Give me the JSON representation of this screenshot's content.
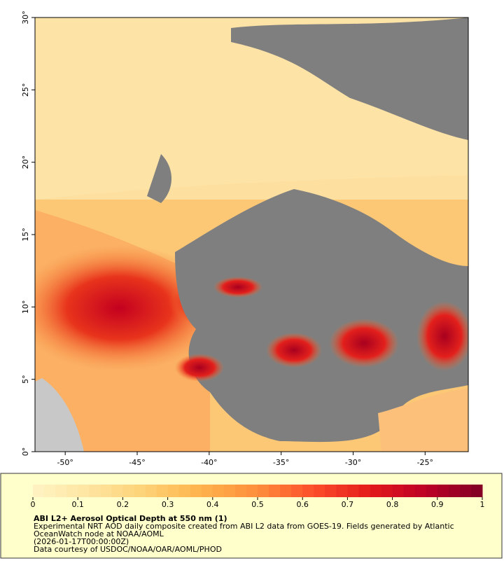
{
  "map": {
    "xlim": [
      -52.1,
      -22
    ],
    "ylim": [
      0,
      30
    ],
    "xticks": [
      {
        "value": -50,
        "label": "-50°"
      },
      {
        "value": -45,
        "label": "-45°"
      },
      {
        "value": -40,
        "label": "-40°"
      },
      {
        "value": -35,
        "label": "-35°"
      },
      {
        "value": -30,
        "label": "-30°"
      },
      {
        "value": -25,
        "label": "-25°"
      }
    ],
    "yticks": [
      {
        "value": 0,
        "label": "0°"
      },
      {
        "value": 5,
        "label": "5°"
      },
      {
        "value": 10,
        "label": "10°"
      },
      {
        "value": 15,
        "label": "15°"
      },
      {
        "value": 20,
        "label": "20°"
      },
      {
        "value": 25,
        "label": "25°"
      },
      {
        "value": 30,
        "label": "30°"
      }
    ]
  },
  "colorbar": {
    "lim": [
      0,
      1
    ],
    "ticks": [
      0,
      0.1,
      0.2,
      0.3,
      0.4,
      0.5,
      0.6,
      0.7,
      0.8,
      0.9,
      1
    ],
    "colors": [
      "#fff3c4",
      "#fee4a0",
      "#fed276",
      "#feb24c",
      "#fd8d3c",
      "#fc4e2a",
      "#e31a1c",
      "#bd0026",
      "#800026"
    ]
  },
  "caption": {
    "title": "ABI L2+ Aerosol Optical Depth at 550 nm (1)",
    "lines": [
      "Experimental NRT AOD daily composite created from ABI L2 data from GOES-19. Fields generated by Atlantic",
      "OceanWatch node at NOAA/AOML",
      "(2026-01-17T00:00:00Z)",
      "Data courtesy of USDOC/NOAA/OAR/AOML/PHOD"
    ]
  }
}
